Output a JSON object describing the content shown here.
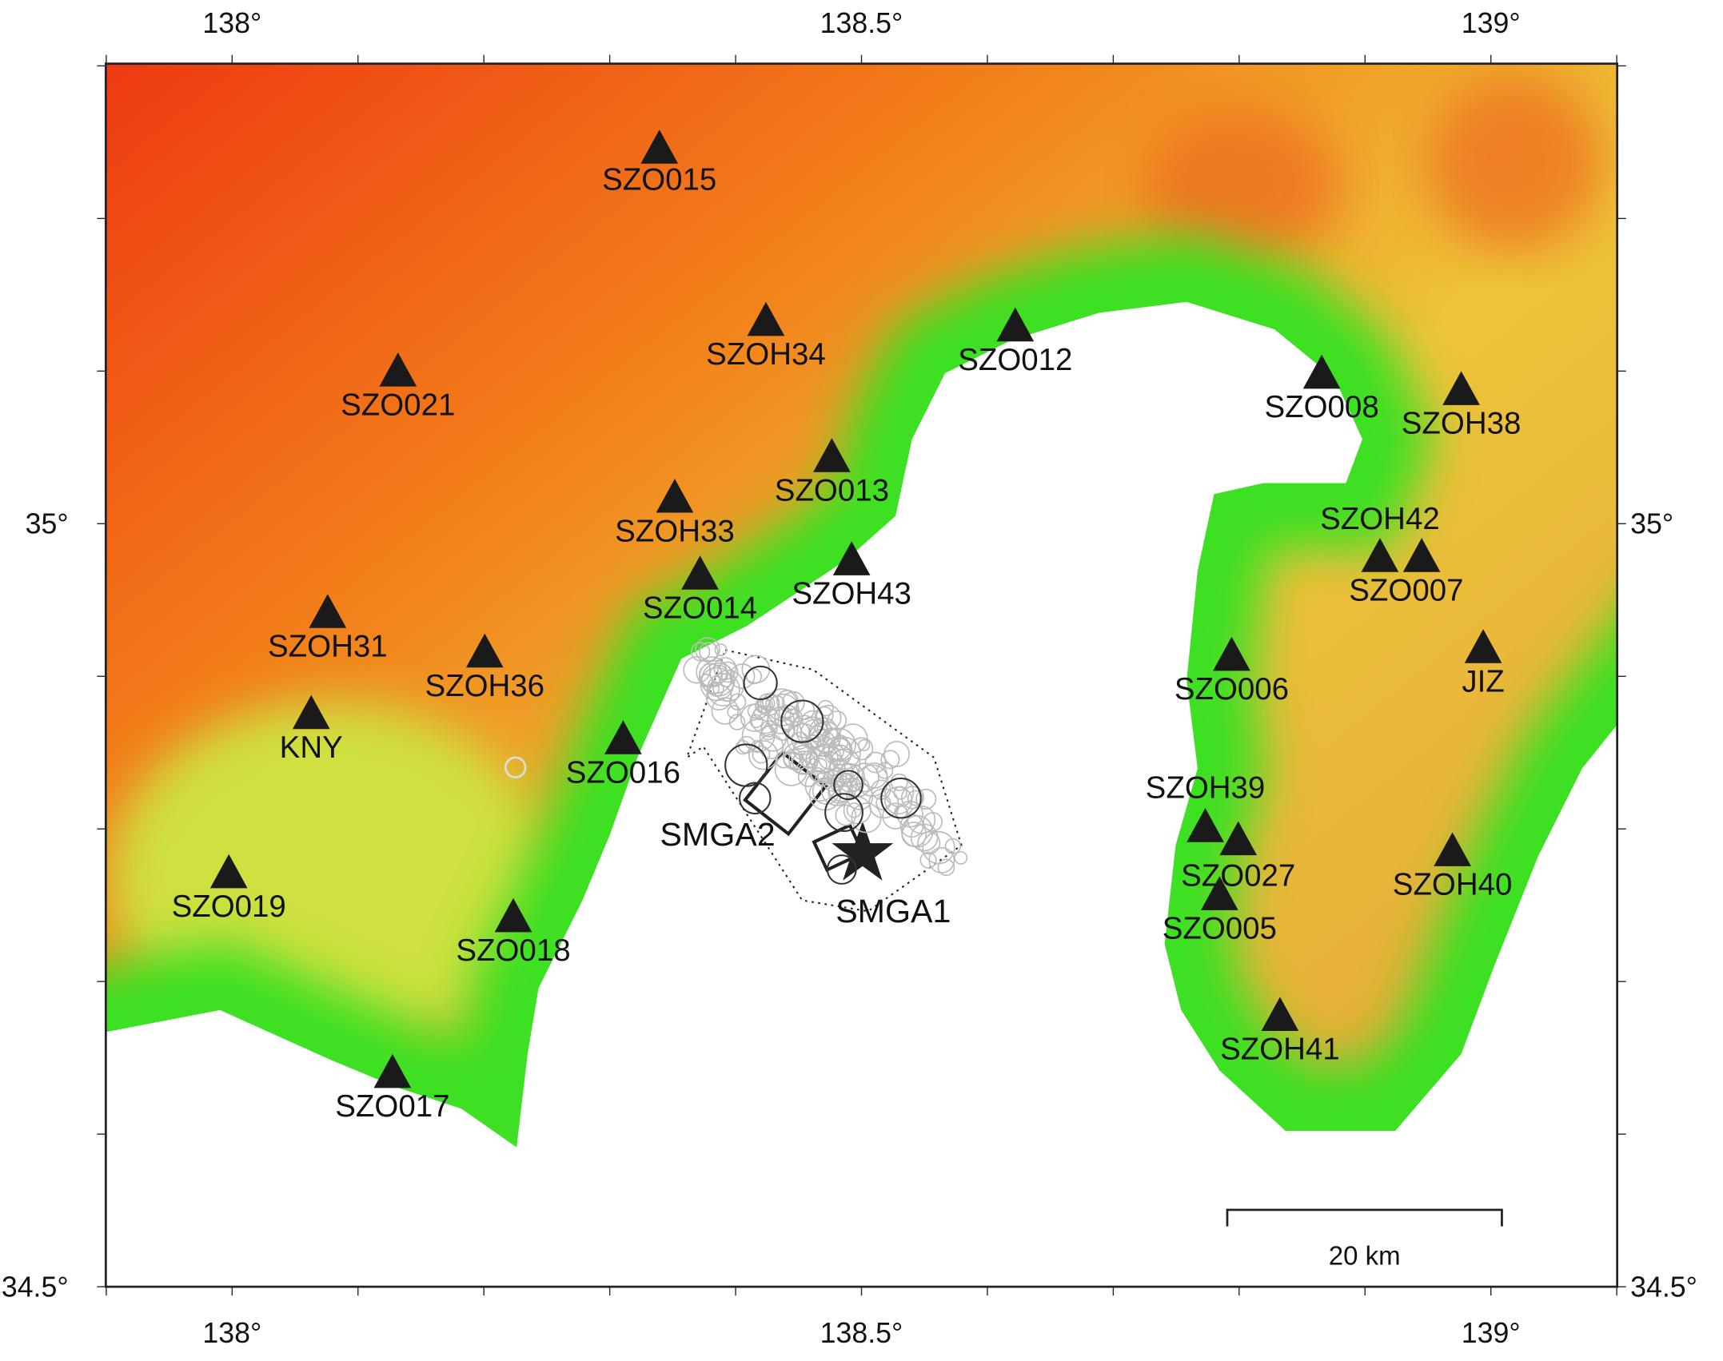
{
  "axes": {
    "longitude_labels": [
      "138°",
      "138.5°",
      "139°"
    ],
    "latitude_labels": [
      "35°",
      "34.5°"
    ]
  },
  "stations": [
    "SZO015",
    "SZOH34",
    "SZO012",
    "SZO021",
    "SZO008",
    "SZOH38",
    "SZO013",
    "SZOH33",
    "SZOH42",
    "SZO007",
    "SZO014",
    "SZOH43",
    "SZOH31",
    "SZOH36",
    "SZO006",
    "JIZ",
    "KNY",
    "SZO016",
    "SZOH39",
    "SZO027",
    "SZO005",
    "SZOH40",
    "SZO019",
    "SZO018",
    "SZOH41",
    "SZO017"
  ],
  "faults": [
    "SMGA2",
    "SMGA1"
  ],
  "scale_bar": "20 km"
}
